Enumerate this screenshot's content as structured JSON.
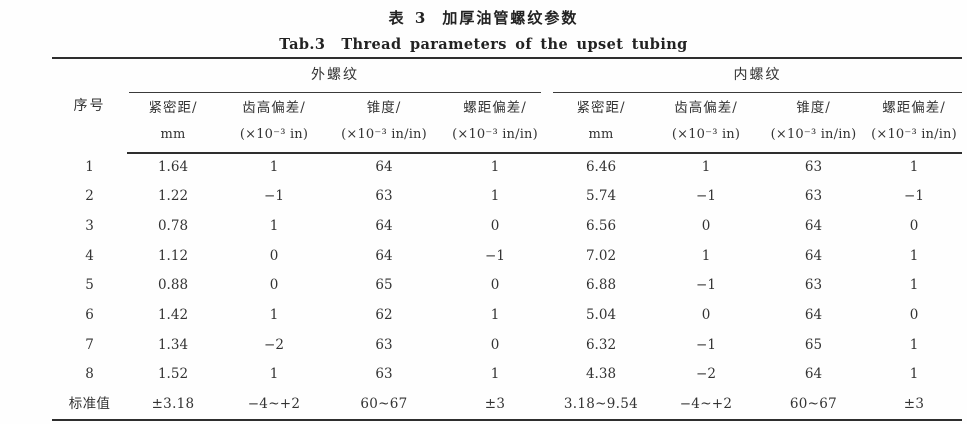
{
  "page": {
    "title_cn_prefix": "表 3",
    "title_cn": "加厚油管螺纹参数",
    "title_en_prefix": "Tab.3",
    "title_en": "Thread parameters of the upset tubing"
  },
  "table": {
    "row_header_label": "序号",
    "groups": [
      {
        "label": "外螺纹"
      },
      {
        "label": "内螺纹"
      }
    ],
    "columns": [
      {
        "name": "紧密距/",
        "unit": "mm"
      },
      {
        "name": "齿高偏差/",
        "unit": "(×10⁻³ in)"
      },
      {
        "name": "锥度/",
        "unit": "(×10⁻³ in/in)"
      },
      {
        "name": "螺距偏差/",
        "unit": "(×10⁻³ in/in)"
      },
      {
        "name": "紧密距/",
        "unit": "mm"
      },
      {
        "name": "齿高偏差/",
        "unit": "(×10⁻³ in)"
      },
      {
        "name": "锥度/",
        "unit": "(×10⁻³ in/in)"
      },
      {
        "name": "螺距偏差/",
        "unit": "(×10⁻³ in/in)"
      }
    ],
    "rows": [
      [
        "1",
        "1.64",
        "1",
        "64",
        "1",
        "6.46",
        "1",
        "63",
        "1"
      ],
      [
        "2",
        "1.22",
        "−1",
        "63",
        "1",
        "5.74",
        "−1",
        "63",
        "−1"
      ],
      [
        "3",
        "0.78",
        "1",
        "64",
        "0",
        "6.56",
        "0",
        "64",
        "0"
      ],
      [
        "4",
        "1.12",
        "0",
        "64",
        "−1",
        "7.02",
        "1",
        "64",
        "1"
      ],
      [
        "5",
        "0.88",
        "0",
        "65",
        "0",
        "6.88",
        "−1",
        "63",
        "1"
      ],
      [
        "6",
        "1.42",
        "1",
        "62",
        "1",
        "5.04",
        "0",
        "64",
        "0"
      ],
      [
        "7",
        "1.34",
        "−2",
        "63",
        "0",
        "6.32",
        "−1",
        "65",
        "1"
      ],
      [
        "8",
        "1.52",
        "1",
        "63",
        "1",
        "4.38",
        "−2",
        "64",
        "1"
      ],
      [
        "标准值",
        "±3.18",
        "−4~+2",
        "60~67",
        "±3",
        "3.18~9.54",
        "−4~+2",
        "60~67",
        "±3"
      ]
    ],
    "standard_row_label": "标准值"
  }
}
